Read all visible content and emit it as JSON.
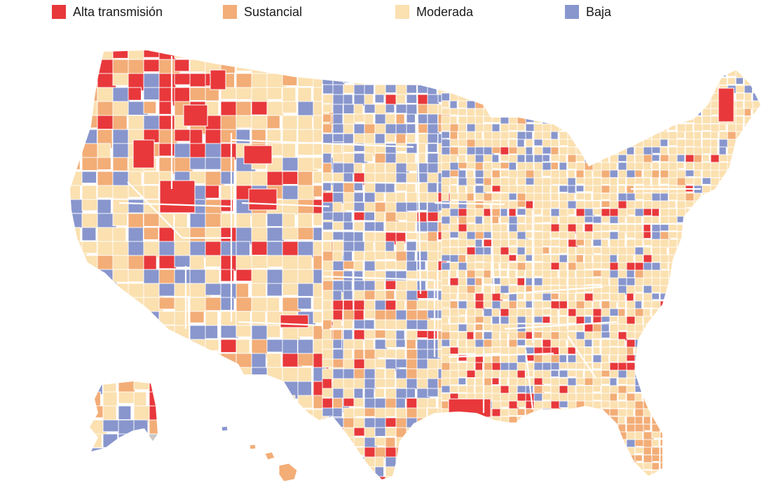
{
  "legend": [
    {
      "key": "high",
      "label": "Alta transmisión",
      "color": "#e8383b"
    },
    {
      "key": "substantial",
      "label": "Sustancial",
      "color": "#f3ad77"
    },
    {
      "key": "moderate",
      "label": "Moderada",
      "color": "#fbe0b0"
    },
    {
      "key": "low",
      "label": "Baja",
      "color": "#8896cd"
    }
  ],
  "colors": {
    "high": "#e8383b",
    "substantial": "#f3ad77",
    "moderate": "#fbe0b0",
    "low": "#8896cd",
    "no_data": "#c8c8c8",
    "border": "#ffffff"
  },
  "map": {
    "region": "United States (contiguous, Alaska, Hawaii)",
    "unit": "county",
    "predominant_level_west": "high",
    "predominant_level_plains": "low",
    "predominant_level_east": "moderate",
    "predominant_level_florida": "substantial"
  }
}
